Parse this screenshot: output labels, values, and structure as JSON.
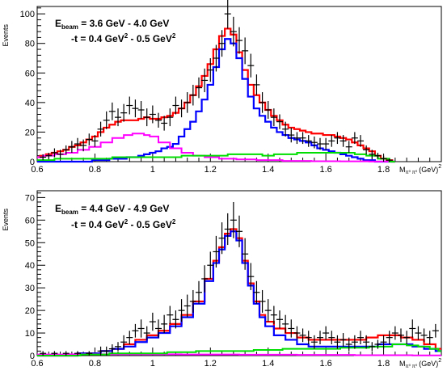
{
  "chart_data": [
    {
      "type": "line",
      "ylabel": "Events",
      "xlabel": "M_{π⁰π⁰} (GeV)²",
      "xlabel_parts": {
        "base": "M",
        "sub": "π⁰ π⁰",
        "unit": "(GeV)",
        "sup": "2"
      },
      "xlim": [
        0.6,
        2.0
      ],
      "ylim": [
        0,
        105
      ],
      "xticks": [
        0.6,
        0.8,
        1.0,
        1.2,
        1.4,
        1.6,
        1.8
      ],
      "xtick_labels": [
        "0.6",
        "0.8",
        "1",
        "1.2",
        "1.4",
        "1.6",
        "1.8"
      ],
      "yticks": [
        0,
        20,
        40,
        60,
        80,
        100
      ],
      "ytick_labels": [
        "0",
        "20",
        "40",
        "60",
        "80",
        "100"
      ],
      "annotations": {
        "line1": {
          "base": "E",
          "sub": "beam",
          "rest": " = 3.6 GeV - 4.0 GeV"
        },
        "line2": {
          "parts": [
            "-t = 0.4 GeV",
            "2",
            " - 0.5 GeV",
            "2"
          ]
        }
      },
      "data_points": {
        "x": [
          0.62,
          0.64,
          0.66,
          0.68,
          0.7,
          0.72,
          0.74,
          0.76,
          0.78,
          0.8,
          0.82,
          0.84,
          0.86,
          0.88,
          0.9,
          0.92,
          0.94,
          0.96,
          0.98,
          1.0,
          1.02,
          1.04,
          1.06,
          1.08,
          1.1,
          1.12,
          1.14,
          1.16,
          1.18,
          1.2,
          1.22,
          1.24,
          1.26,
          1.28,
          1.3,
          1.32,
          1.34,
          1.36,
          1.38,
          1.4,
          1.42,
          1.44,
          1.46,
          1.48,
          1.5,
          1.52,
          1.54,
          1.56,
          1.58,
          1.6,
          1.62,
          1.64,
          1.66,
          1.68,
          1.7,
          1.72,
          1.74,
          1.76,
          1.78,
          1.8,
          1.82
        ],
        "y": [
          3,
          4,
          6,
          5,
          8,
          10,
          12,
          11,
          15,
          14,
          22,
          28,
          34,
          30,
          33,
          38,
          36,
          35,
          30,
          32,
          28,
          26,
          30,
          38,
          36,
          40,
          45,
          50,
          55,
          62,
          70,
          80,
          100,
          88,
          82,
          75,
          65,
          52,
          40,
          35,
          30,
          27,
          22,
          18,
          16,
          16,
          14,
          13,
          12,
          12,
          14,
          16,
          14,
          10,
          16,
          14,
          8,
          5,
          4,
          2,
          1
        ],
        "err": [
          2,
          2,
          3,
          3,
          3,
          4,
          4,
          4,
          4,
          4,
          5,
          6,
          6,
          6,
          6,
          6,
          6,
          6,
          6,
          6,
          5,
          5,
          6,
          6,
          6,
          7,
          7,
          7,
          8,
          8,
          9,
          9,
          10,
          10,
          9,
          9,
          8,
          7,
          7,
          6,
          6,
          5,
          5,
          5,
          4,
          4,
          4,
          4,
          4,
          4,
          4,
          4,
          4,
          4,
          4,
          4,
          3,
          3,
          2,
          2,
          1
        ],
        "color": "#000000"
      },
      "series": [
        {
          "color": "#ff0000",
          "x": [
            0.6,
            0.62,
            0.64,
            0.66,
            0.68,
            0.7,
            0.72,
            0.74,
            0.76,
            0.78,
            0.8,
            0.82,
            0.84,
            0.86,
            0.88,
            0.9,
            0.92,
            0.94,
            0.96,
            0.98,
            1.0,
            1.02,
            1.04,
            1.06,
            1.08,
            1.1,
            1.12,
            1.14,
            1.16,
            1.18,
            1.2,
            1.22,
            1.24,
            1.26,
            1.28,
            1.3,
            1.32,
            1.34,
            1.36,
            1.38,
            1.4,
            1.42,
            1.44,
            1.46,
            1.48,
            1.5,
            1.52,
            1.54,
            1.56,
            1.58,
            1.6,
            1.62,
            1.64,
            1.66,
            1.68,
            1.7,
            1.72,
            1.74,
            1.76,
            1.78,
            1.8,
            1.82,
            1.84
          ],
          "y": [
            3,
            4,
            5,
            6,
            7,
            8,
            10,
            11,
            13,
            15,
            17,
            20,
            23,
            25,
            27,
            28,
            28,
            28,
            29,
            30,
            29,
            29,
            30,
            31,
            33,
            36,
            40,
            45,
            51,
            58,
            66,
            76,
            85,
            90,
            86,
            74,
            62,
            52,
            45,
            40,
            35,
            31,
            28,
            25,
            23,
            22,
            21,
            20,
            19,
            19,
            18,
            18,
            17,
            16,
            15,
            13,
            11,
            9,
            7,
            4,
            2,
            1,
            0
          ]
        },
        {
          "color": "#0000ff",
          "x": [
            0.6,
            0.62,
            0.64,
            0.66,
            0.68,
            0.7,
            0.72,
            0.74,
            0.76,
            0.78,
            0.8,
            0.82,
            0.84,
            0.86,
            0.88,
            0.9,
            0.92,
            0.94,
            0.96,
            0.98,
            1.0,
            1.02,
            1.04,
            1.06,
            1.08,
            1.1,
            1.12,
            1.14,
            1.16,
            1.18,
            1.2,
            1.22,
            1.24,
            1.26,
            1.28,
            1.3,
            1.32,
            1.34,
            1.36,
            1.38,
            1.4,
            1.42,
            1.44,
            1.46,
            1.48,
            1.5,
            1.52,
            1.54,
            1.56,
            1.58,
            1.6,
            1.62,
            1.64,
            1.66,
            1.68,
            1.7,
            1.72,
            1.74,
            1.76,
            1.78,
            1.8,
            1.82,
            1.84
          ],
          "y": [
            0,
            0,
            0,
            0,
            0,
            0,
            0,
            0,
            0,
            0,
            1,
            1,
            1,
            2,
            2,
            2,
            3,
            3,
            4,
            5,
            6,
            7,
            9,
            10,
            12,
            17,
            22,
            27,
            34,
            42,
            52,
            64,
            76,
            83,
            80,
            70,
            56,
            44,
            36,
            31,
            27,
            23,
            20,
            18,
            16,
            15,
            14,
            13,
            11,
            9,
            8,
            7,
            6,
            5,
            4,
            3,
            2,
            1,
            1,
            0,
            0,
            0,
            0
          ]
        },
        {
          "color": "#ff00ff",
          "x": [
            0.6,
            0.64,
            0.68,
            0.72,
            0.76,
            0.8,
            0.84,
            0.88,
            0.92,
            0.94,
            0.96,
            0.98,
            1.0,
            1.04,
            1.08,
            1.12,
            1.16,
            1.2,
            1.26,
            1.32,
            1.4,
            1.5,
            1.6,
            1.7,
            1.8,
            1.84
          ],
          "y": [
            3,
            4,
            5,
            6,
            8,
            10,
            13,
            16,
            18,
            19,
            19,
            18,
            17,
            13,
            9,
            6,
            4,
            3,
            2,
            1.5,
            1,
            0.5,
            0.3,
            0.2,
            0.1,
            0
          ]
        },
        {
          "color": "#00dd00",
          "x": [
            0.6,
            0.64,
            0.68,
            0.72,
            0.76,
            0.8,
            0.84,
            0.88,
            0.92,
            0.96,
            1.0,
            1.04,
            1.08,
            1.12,
            1.16,
            1.2,
            1.24,
            1.28,
            1.32,
            1.36,
            1.4,
            1.44,
            1.48,
            1.52,
            1.56,
            1.6,
            1.64,
            1.68,
            1.72,
            1.76,
            1.8,
            1.84
          ],
          "y": [
            1,
            1,
            2,
            2,
            2,
            2,
            2,
            3,
            3,
            3,
            3,
            3,
            3,
            4,
            4,
            4,
            4,
            5,
            5,
            5,
            4,
            5,
            5,
            6,
            6,
            6,
            6,
            6,
            5,
            4,
            2,
            0
          ]
        }
      ]
    },
    {
      "type": "line",
      "ylabel": "Events",
      "xlabel": "M_{π⁰π⁰} (GeV)²",
      "xlabel_parts": {
        "base": "M",
        "sub": "π⁰ π⁰",
        "unit": "(GeV)",
        "sup": "2"
      },
      "xlim": [
        0.6,
        2.0
      ],
      "ylim": [
        0,
        73
      ],
      "xticks": [
        0.6,
        0.8,
        1.0,
        1.2,
        1.4,
        1.6,
        1.8
      ],
      "xtick_labels": [
        "0.6",
        "0.8",
        "1",
        "1.2",
        "1.4",
        "1.6",
        "1.8"
      ],
      "yticks": [
        0,
        10,
        20,
        30,
        40,
        50,
        60,
        70
      ],
      "ytick_labels": [
        "0",
        "10",
        "20",
        "30",
        "40",
        "50",
        "60",
        "70"
      ],
      "annotations": {
        "line1": {
          "base": "E",
          "sub": "beam",
          "rest": " = 4.4 GeV - 4.9 GeV"
        },
        "line2": {
          "parts": [
            "-t = 0.4 GeV",
            "2",
            " - 0.5 GeV",
            "2"
          ]
        }
      },
      "data_points": {
        "x": [
          0.62,
          0.66,
          0.7,
          0.74,
          0.78,
          0.82,
          0.84,
          0.86,
          0.88,
          0.9,
          0.92,
          0.94,
          0.96,
          0.98,
          1.0,
          1.02,
          1.04,
          1.06,
          1.08,
          1.1,
          1.12,
          1.14,
          1.16,
          1.18,
          1.2,
          1.22,
          1.24,
          1.26,
          1.28,
          1.3,
          1.32,
          1.34,
          1.36,
          1.38,
          1.4,
          1.42,
          1.44,
          1.46,
          1.48,
          1.5,
          1.52,
          1.54,
          1.56,
          1.58,
          1.6,
          1.62,
          1.64,
          1.66,
          1.68,
          1.7,
          1.72,
          1.74,
          1.76,
          1.78,
          1.8,
          1.82,
          1.84,
          1.86,
          1.88,
          1.9,
          1.92,
          1.94,
          1.96,
          1.98
        ],
        "y": [
          1,
          1,
          1,
          1,
          1,
          2,
          2,
          3,
          4,
          6,
          8,
          11,
          12,
          10,
          15,
          12,
          14,
          18,
          16,
          20,
          22,
          24,
          28,
          34,
          40,
          46,
          52,
          56,
          60,
          55,
          45,
          35,
          28,
          24,
          20,
          18,
          16,
          14,
          12,
          10,
          9,
          8,
          6,
          8,
          10,
          8,
          6,
          7,
          5,
          6,
          8,
          6,
          4,
          5,
          6,
          8,
          10,
          9,
          8,
          12,
          10,
          9,
          8,
          11
        ],
        "err": [
          1,
          1,
          1,
          1,
          1,
          2,
          2,
          2,
          2,
          3,
          3,
          3,
          4,
          3,
          4,
          4,
          4,
          4,
          4,
          5,
          5,
          5,
          5,
          6,
          6,
          7,
          7,
          7,
          8,
          7,
          7,
          6,
          5,
          5,
          5,
          4,
          4,
          4,
          4,
          3,
          3,
          3,
          3,
          3,
          3,
          3,
          3,
          3,
          3,
          3,
          3,
          3,
          2,
          2,
          3,
          3,
          3,
          3,
          3,
          4,
          3,
          3,
          3,
          3
        ],
        "color": "#000000"
      },
      "series": [
        {
          "color": "#ff0000",
          "x": [
            0.6,
            0.64,
            0.68,
            0.72,
            0.76,
            0.8,
            0.84,
            0.88,
            0.92,
            0.96,
            1.0,
            1.04,
            1.08,
            1.12,
            1.16,
            1.2,
            1.22,
            1.24,
            1.26,
            1.28,
            1.3,
            1.32,
            1.34,
            1.36,
            1.38,
            1.4,
            1.44,
            1.48,
            1.52,
            1.56,
            1.6,
            1.64,
            1.68,
            1.72,
            1.76,
            1.8,
            1.84,
            1.88,
            1.92,
            1.96,
            2.0
          ],
          "y": [
            0,
            0,
            0,
            0,
            1,
            1,
            2,
            3,
            5,
            7,
            9,
            11,
            14,
            18,
            24,
            34,
            42,
            48,
            54,
            56,
            52,
            42,
            32,
            24,
            18,
            15,
            12,
            10,
            8,
            7,
            7,
            7,
            7,
            7,
            8,
            9,
            9,
            8,
            7,
            5,
            3
          ]
        },
        {
          "color": "#0000ff",
          "x": [
            0.6,
            0.64,
            0.68,
            0.72,
            0.76,
            0.8,
            0.84,
            0.88,
            0.92,
            0.96,
            1.0,
            1.04,
            1.08,
            1.12,
            1.16,
            1.2,
            1.22,
            1.24,
            1.26,
            1.28,
            1.3,
            1.32,
            1.34,
            1.36,
            1.38,
            1.4,
            1.44,
            1.48,
            1.52,
            1.56,
            1.6,
            1.64,
            1.68,
            1.72,
            1.76,
            1.8,
            1.84,
            1.88,
            1.92,
            1.96,
            2.0
          ],
          "y": [
            0,
            0,
            0,
            0,
            1,
            1,
            2,
            3,
            4,
            6,
            8,
            10,
            13,
            17,
            23,
            33,
            41,
            47,
            53,
            55,
            51,
            41,
            31,
            23,
            17,
            13,
            9,
            7,
            5,
            4,
            4,
            4,
            4,
            4,
            4,
            5,
            5,
            5,
            4,
            3,
            2
          ]
        },
        {
          "color": "#ff00ff",
          "x": [
            0.6,
            0.8,
            1.0,
            1.2,
            1.4,
            1.6,
            1.8,
            2.0
          ],
          "y": [
            0.5,
            0.6,
            0.6,
            0.5,
            0.4,
            0.3,
            0.2,
            0.1
          ]
        },
        {
          "color": "#00dd00",
          "x": [
            0.6,
            0.7,
            0.8,
            0.9,
            1.0,
            1.1,
            1.2,
            1.3,
            1.4,
            1.5,
            1.6,
            1.7,
            1.8,
            1.86,
            1.9,
            1.94,
            1.98,
            2.0
          ],
          "y": [
            0,
            0,
            0.5,
            1,
            1,
            1.5,
            2,
            2,
            2.5,
            3,
            3,
            3.5,
            4,
            5,
            4.5,
            4,
            3,
            2
          ]
        }
      ]
    }
  ]
}
